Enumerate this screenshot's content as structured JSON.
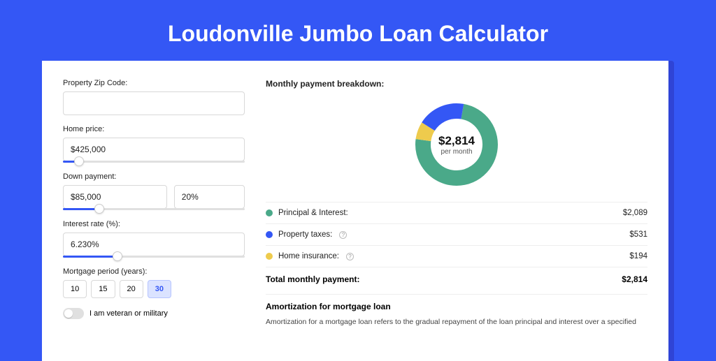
{
  "title": "Loudonville Jumbo Loan Calculator",
  "form": {
    "zip": {
      "label": "Property Zip Code:",
      "value": ""
    },
    "price": {
      "label": "Home price:",
      "value": "$425,000",
      "slider_pct": 9
    },
    "down": {
      "label": "Down payment:",
      "value": "$85,000",
      "pct": "20%",
      "slider_pct": 20
    },
    "rate": {
      "label": "Interest rate (%):",
      "value": "6.230%",
      "slider_pct": 30
    },
    "period": {
      "label": "Mortgage period (years):",
      "options": [
        "10",
        "15",
        "20",
        "30"
      ],
      "active": "30"
    },
    "veteran": {
      "label": "I am veteran or military",
      "on": false
    }
  },
  "breakdown": {
    "title": "Monthly payment breakdown:",
    "center_amount": "$2,814",
    "center_sub": "per month",
    "donut": {
      "size": 128,
      "radius": 48,
      "stroke": 22,
      "slices": [
        {
          "color": "#4aa989",
          "pct": 74.2
        },
        {
          "color": "#eecb4d",
          "pct": 6.9
        },
        {
          "color": "#3457f5",
          "pct": 18.9
        }
      ]
    },
    "items": [
      {
        "swatch": "#4aa989",
        "label": "Principal & Interest:",
        "info": false,
        "value": "$2,089"
      },
      {
        "swatch": "#3457f5",
        "label": "Property taxes:",
        "info": true,
        "value": "$531"
      },
      {
        "swatch": "#eecb4d",
        "label": "Home insurance:",
        "info": true,
        "value": "$194"
      }
    ],
    "total_label": "Total monthly payment:",
    "total_value": "$2,814"
  },
  "amort": {
    "title": "Amortization for mortgage loan",
    "text": "Amortization for a mortgage loan refers to the gradual repayment of the loan principal and interest over a specified"
  }
}
